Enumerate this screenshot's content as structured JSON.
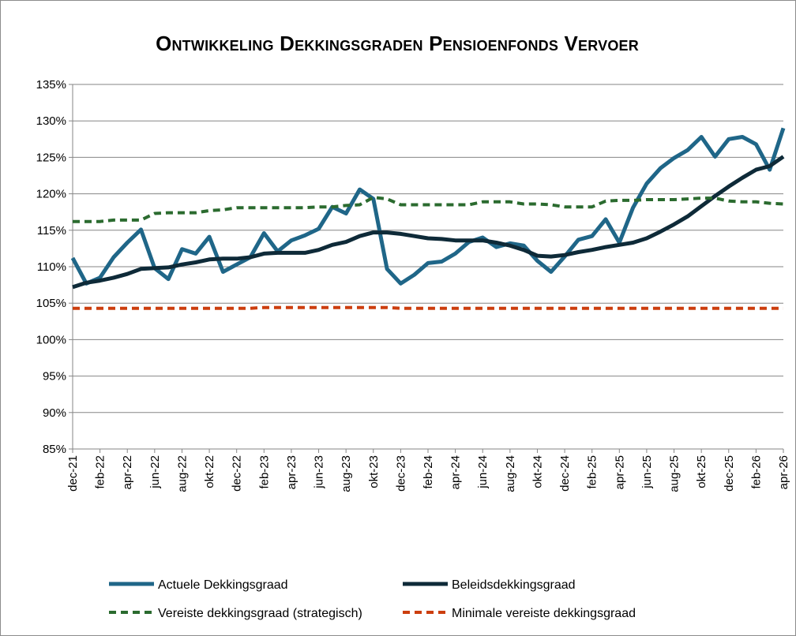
{
  "chart_data": {
    "type": "line",
    "title": "Ontwikkeling Dekkingsgraden Pensioenfonds Vervoer",
    "xlabel": "",
    "ylabel": "",
    "ylim": [
      85,
      135
    ],
    "ytick_step": 5,
    "y_format": "percent",
    "grid": "horizontal",
    "legend_position": "bottom",
    "x": [
      "dec-21",
      "jan-22",
      "feb-22",
      "mrt-22",
      "apr-22",
      "mei-22",
      "jun-22",
      "jul-22",
      "aug-22",
      "sep-22",
      "okt-22",
      "nov-22",
      "dec-22",
      "jan-23",
      "feb-23",
      "mrt-23",
      "apr-23",
      "mei-23",
      "jun-23",
      "jul-23",
      "aug-23",
      "sep-23",
      "okt-23",
      "nov-23",
      "dec-23",
      "jan-24",
      "feb-24",
      "mrt-24",
      "apr-24",
      "mei-24",
      "jun-24",
      "jul-24",
      "aug-24",
      "sep-24",
      "okt-24",
      "nov-24",
      "dec-24",
      "jan-25",
      "feb-25",
      "mrt-25",
      "apr-25",
      "mei-25",
      "jun-25",
      "jul-25",
      "aug-25",
      "sep-25",
      "okt-25",
      "nov-25",
      "dec-25",
      "jan-26",
      "feb-26",
      "mrt-26",
      "apr-26"
    ],
    "x_tick_labels": [
      "dec-21",
      "feb-22",
      "apr-22",
      "jun-22",
      "aug-22",
      "okt-22",
      "dec-22",
      "feb-23",
      "apr-23",
      "jun-23",
      "aug-23",
      "okt-23",
      "dec-23",
      "feb-24",
      "apr-24",
      "jun-24",
      "aug-24",
      "okt-24",
      "dec-24",
      "feb-25",
      "apr-25",
      "jun-25",
      "aug-25",
      "okt-25",
      "dec-25",
      "feb-26",
      "apr-26"
    ],
    "series": [
      {
        "name": "Actuele Dekkingsgraad",
        "color": "#1f6688",
        "dash": "solid",
        "values": [
          111.2,
          107.7,
          108.5,
          111.3,
          113.3,
          115.1,
          109.8,
          108.3,
          112.4,
          111.8,
          114.1,
          109.3,
          110.3,
          111.3,
          114.6,
          112.1,
          113.6,
          114.3,
          115.2,
          118.2,
          117.3,
          120.6,
          119.3,
          109.7,
          107.7,
          108.9,
          110.5,
          110.7,
          111.8,
          113.4,
          114.0,
          112.7,
          113.2,
          112.9,
          110.8,
          109.3,
          111.4,
          113.7,
          114.2,
          116.5,
          113.3,
          118.1,
          121.4,
          123.5,
          124.9,
          126.0,
          127.8,
          125.1,
          127.5,
          127.8,
          126.8,
          123.3,
          129.0
        ]
      },
      {
        "name": "Beleidsdekkingsgraad",
        "color": "#0e2a38",
        "dash": "solid",
        "values": [
          107.2,
          107.8,
          108.1,
          108.5,
          109.0,
          109.7,
          109.8,
          109.9,
          110.3,
          110.6,
          111.0,
          111.1,
          111.1,
          111.3,
          111.8,
          111.9,
          111.9,
          111.9,
          112.3,
          113.0,
          113.4,
          114.2,
          114.7,
          114.7,
          114.5,
          114.2,
          113.9,
          113.8,
          113.6,
          113.6,
          113.6,
          113.3,
          112.9,
          112.3,
          111.5,
          111.4,
          111.6,
          112.0,
          112.3,
          112.7,
          113.0,
          113.3,
          113.9,
          114.8,
          115.8,
          116.9,
          118.3,
          119.7,
          121.0,
          122.2,
          123.3,
          123.8,
          125.1
        ]
      },
      {
        "name": "Vereiste dekkingsgraad (strategisch)",
        "color": "#2b6b2f",
        "dash": "dashed",
        "values": [
          116.2,
          116.2,
          116.2,
          116.4,
          116.4,
          116.4,
          117.3,
          117.4,
          117.4,
          117.4,
          117.7,
          117.8,
          118.1,
          118.1,
          118.1,
          118.1,
          118.1,
          118.1,
          118.2,
          118.2,
          118.4,
          118.5,
          119.5,
          119.3,
          118.5,
          118.5,
          118.5,
          118.5,
          118.5,
          118.5,
          118.9,
          118.9,
          118.9,
          118.6,
          118.6,
          118.5,
          118.2,
          118.2,
          118.2,
          119.0,
          119.1,
          119.1,
          119.2,
          119.2,
          119.2,
          119.3,
          119.4,
          119.4,
          119.0,
          118.9,
          118.9,
          118.7,
          118.6
        ]
      },
      {
        "name": "Minimale vereiste dekkingsgraad",
        "color": "#cc3e0e",
        "dash": "dashed",
        "values": [
          104.3,
          104.3,
          104.3,
          104.3,
          104.3,
          104.3,
          104.3,
          104.3,
          104.3,
          104.3,
          104.3,
          104.3,
          104.3,
          104.3,
          104.4,
          104.4,
          104.4,
          104.4,
          104.4,
          104.4,
          104.4,
          104.4,
          104.4,
          104.4,
          104.3,
          104.3,
          104.3,
          104.3,
          104.3,
          104.3,
          104.3,
          104.3,
          104.3,
          104.3,
          104.3,
          104.3,
          104.3,
          104.3,
          104.3,
          104.3,
          104.3,
          104.3,
          104.3,
          104.3,
          104.3,
          104.3,
          104.3,
          104.3,
          104.3,
          104.3,
          104.3,
          104.3,
          104.3
        ]
      }
    ]
  }
}
